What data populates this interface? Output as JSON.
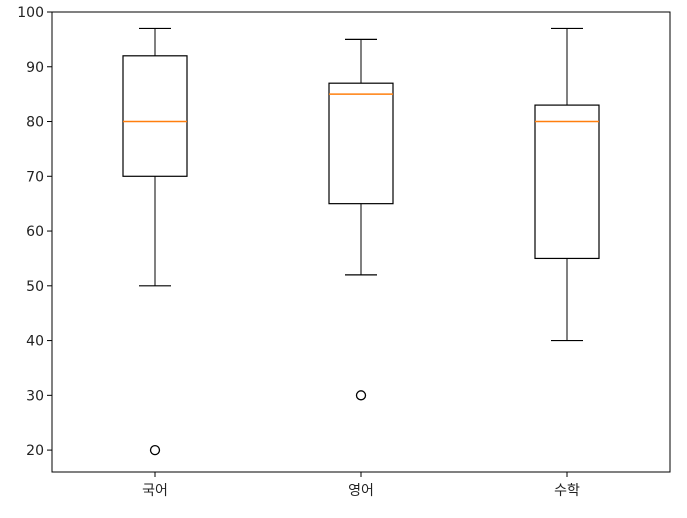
{
  "chart_data": {
    "type": "box",
    "categories": [
      "국어",
      "영어",
      "수학"
    ],
    "boxes": [
      {
        "category": "국어",
        "whisker_low": 50,
        "q1": 70,
        "median": 80,
        "q3": 92,
        "whisker_high": 97,
        "outliers": [
          20
        ]
      },
      {
        "category": "영어",
        "whisker_low": 52,
        "q1": 65,
        "median": 85,
        "q3": 87,
        "whisker_high": 95,
        "outliers": [
          30
        ]
      },
      {
        "category": "수학",
        "whisker_low": 40,
        "q1": 55,
        "median": 80,
        "q3": 83,
        "whisker_high": 97,
        "outliers": []
      }
    ],
    "ylim": [
      16,
      100
    ],
    "yticks": [
      20,
      30,
      40,
      50,
      60,
      70,
      80,
      90,
      100
    ],
    "title": "",
    "xlabel": "",
    "ylabel": "",
    "grid": false,
    "colors": {
      "box": "#000000",
      "median": "#ff7f0e",
      "outlier": "#000000"
    }
  }
}
